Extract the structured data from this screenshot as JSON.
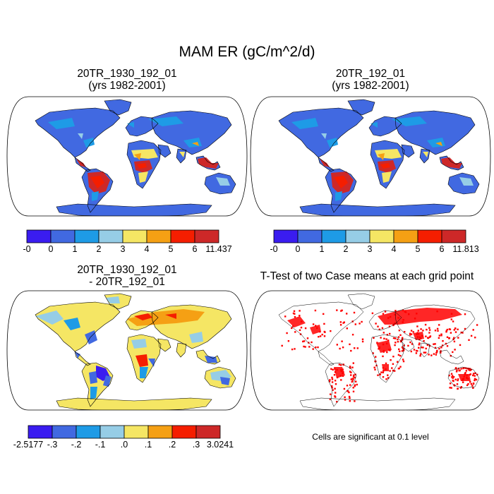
{
  "title": "MAM ER (gC/m^2/d)",
  "panels": [
    {
      "title_line1": "20TR_1930_192_01",
      "title_line2": "(yrs 1982-2001)",
      "kind": "mean_a"
    },
    {
      "title_line1": "20TR_192_01",
      "title_line2": "(yrs 1982-2001)",
      "kind": "mean_b"
    },
    {
      "title_line1": "20TR_1930_192_01",
      "title_line2": "- 20TR_192_01",
      "kind": "diff"
    },
    {
      "title_line1": "T-Test of two Case means at each grid point",
      "title_line2": "",
      "kind": "ttest"
    }
  ],
  "colorbars": [
    {
      "colors": [
        "#3a1cf0",
        "#4169e1",
        "#1e9be6",
        "#96cde6",
        "#f5e664",
        "#f5a014",
        "#f51e00",
        "#cd2828"
      ],
      "labels": [
        "-0",
        "0",
        "1",
        "2",
        "3",
        "4",
        "5",
        "6",
        "11.437"
      ]
    },
    {
      "colors": [
        "#3a1cf0",
        "#4169e1",
        "#1e9be6",
        "#96cde6",
        "#f5e664",
        "#f5a014",
        "#f51e00",
        "#cd2828"
      ],
      "labels": [
        "-0",
        "0",
        "1",
        "2",
        "3",
        "4",
        "5",
        "6",
        "11.813"
      ]
    },
    {
      "colors": [
        "#3a1cf0",
        "#4169e1",
        "#1e9be6",
        "#96cde6",
        "#f5e664",
        "#f5a014",
        "#f51e00",
        "#cd2828"
      ],
      "labels": [
        "-2.5177",
        "-.3",
        "-.2",
        "-.1",
        ".0",
        ".1",
        ".2",
        ".3",
        "3.0241"
      ]
    }
  ],
  "significance_note": "Cells are significant at 0.1 level",
  "colors": {
    "ocean": "#ffffff",
    "significant": "#ff0000"
  }
}
